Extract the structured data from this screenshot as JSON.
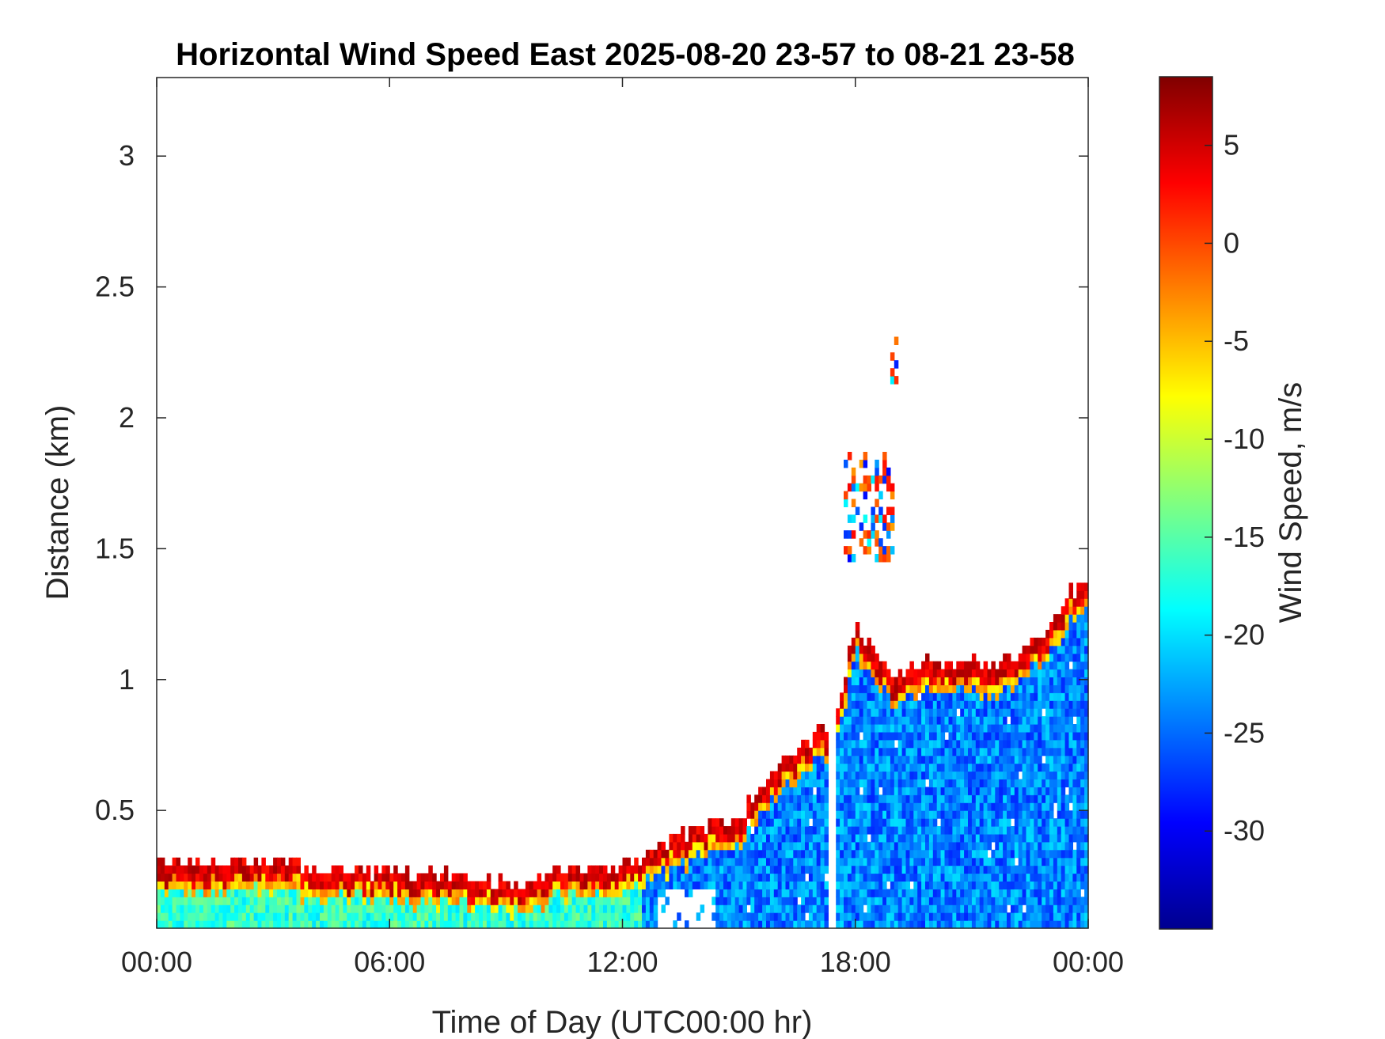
{
  "chart_data": {
    "type": "heatmap",
    "title": "Horizontal Wind Speed East 2025-08-20 23-57 to 08-21 23-58",
    "xlabel": "Time of Day (UTC00:00 hr)",
    "ylabel": "Distance (km)",
    "colorbar_label": "Wind Speed, m/s",
    "x_ticks": [
      "00:00",
      "06:00",
      "12:00",
      "18:00",
      "00:00"
    ],
    "x_tick_hours": [
      0,
      6,
      12,
      18,
      24
    ],
    "xlim_hours": [
      0,
      24
    ],
    "y_ticks": [
      0.5,
      1,
      1.5,
      2,
      2.5,
      3
    ],
    "y_tick_labels": [
      "0.5",
      "1",
      "1.5",
      "2",
      "2.5",
      "3"
    ],
    "ylim_km": [
      0.05,
      3.3
    ],
    "colorbar_ticks": [
      5,
      0,
      -5,
      -10,
      -15,
      -20,
      -25,
      -30
    ],
    "colorbar_tick_labels": [
      "5",
      "0",
      "-5",
      "-10",
      "-15",
      "-20",
      "-25",
      "-30"
    ],
    "clim": [
      -35,
      8.5
    ],
    "colormap": "jet",
    "grid": false,
    "boundary_layer_top_km": [
      [
        0,
        0.28
      ],
      [
        1,
        0.3
      ],
      [
        2,
        0.29
      ],
      [
        3,
        0.29
      ],
      [
        4,
        0.27
      ],
      [
        5,
        0.26
      ],
      [
        6,
        0.25
      ],
      [
        7,
        0.24
      ],
      [
        8,
        0.23
      ],
      [
        9,
        0.21
      ],
      [
        9.5,
        0.22
      ],
      [
        10,
        0.25
      ],
      [
        11,
        0.27
      ],
      [
        12,
        0.27
      ],
      [
        13,
        0.35
      ],
      [
        14,
        0.42
      ],
      [
        14.5,
        0.45
      ],
      [
        15,
        0.45
      ],
      [
        15.5,
        0.58
      ],
      [
        16,
        0.65
      ],
      [
        17,
        0.78
      ],
      [
        17.5,
        0.82
      ],
      [
        18,
        1.2
      ],
      [
        19,
        1.0
      ],
      [
        20,
        1.06
      ],
      [
        21,
        1.05
      ],
      [
        22,
        1.05
      ],
      [
        22.5,
        1.12
      ],
      [
        23,
        1.2
      ],
      [
        23.5,
        1.32
      ],
      [
        24,
        1.35
      ]
    ],
    "echo_clusters_km": [
      {
        "hours": [
          17.7,
          19.0
        ],
        "heights": [
          1.45,
          1.87
        ]
      },
      {
        "hours": [
          18.9,
          19.1
        ],
        "heights": [
          2.13,
          2.28
        ]
      }
    ]
  }
}
